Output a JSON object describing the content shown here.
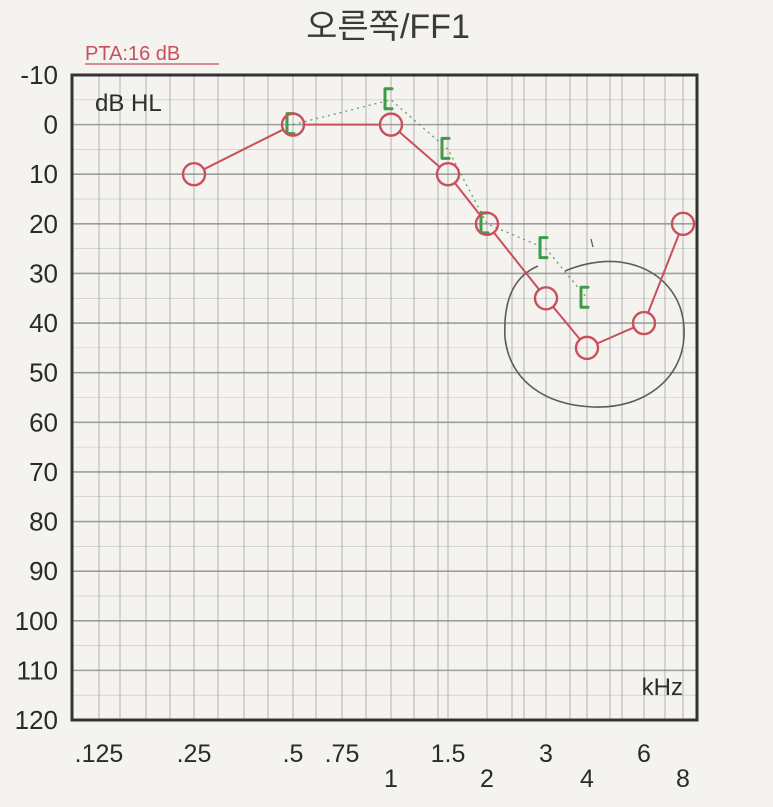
{
  "chart_data": {
    "type": "line",
    "title": "오른쪽/FF1",
    "pta_label": "PTA:16 dB",
    "ylabel": "dB HL",
    "xlabel": "kHz",
    "ylim": [
      -10,
      120
    ],
    "y_ticks": [
      "-10",
      "0",
      "10",
      "20",
      "30",
      "40",
      "50",
      "60",
      "70",
      "80",
      "90",
      "100",
      "110",
      "120"
    ],
    "x_ticks": [
      {
        "label": ".125",
        "level": 0
      },
      {
        "label": ".25",
        "level": 0
      },
      {
        "label": ".5",
        "level": 0
      },
      {
        "label": ".75",
        "level": 0
      },
      {
        "label": "1",
        "level": 1
      },
      {
        "label": "1.5",
        "level": 0
      },
      {
        "label": "2",
        "level": 1
      },
      {
        "label": "3",
        "level": 0
      },
      {
        "label": "4",
        "level": 1
      },
      {
        "label": "6",
        "level": 0
      },
      {
        "label": "8",
        "level": 1
      }
    ],
    "grid": true,
    "series": [
      {
        "marker": "circle",
        "color": "#c9505a",
        "points": [
          {
            "x": ".25",
            "y": 10
          },
          {
            "x": ".5",
            "y": 0
          },
          {
            "x": "1",
            "y": 0
          },
          {
            "x": "1.5",
            "y": 10
          },
          {
            "x": "2",
            "y": 20
          },
          {
            "x": "3",
            "y": 35
          },
          {
            "x": "4",
            "y": 45
          },
          {
            "x": "6",
            "y": 40
          },
          {
            "x": "8",
            "y": 20
          }
        ]
      },
      {
        "marker": "bracket",
        "color": "#3f9a4a",
        "points": [
          {
            "x": ".5",
            "y": 0
          },
          {
            "x": "1",
            "y": -5
          },
          {
            "x": "1.5",
            "y": 5
          },
          {
            "x": "2",
            "y": 20
          },
          {
            "x": "3",
            "y": 25
          },
          {
            "x": "4",
            "y": 35
          }
        ]
      }
    ]
  }
}
